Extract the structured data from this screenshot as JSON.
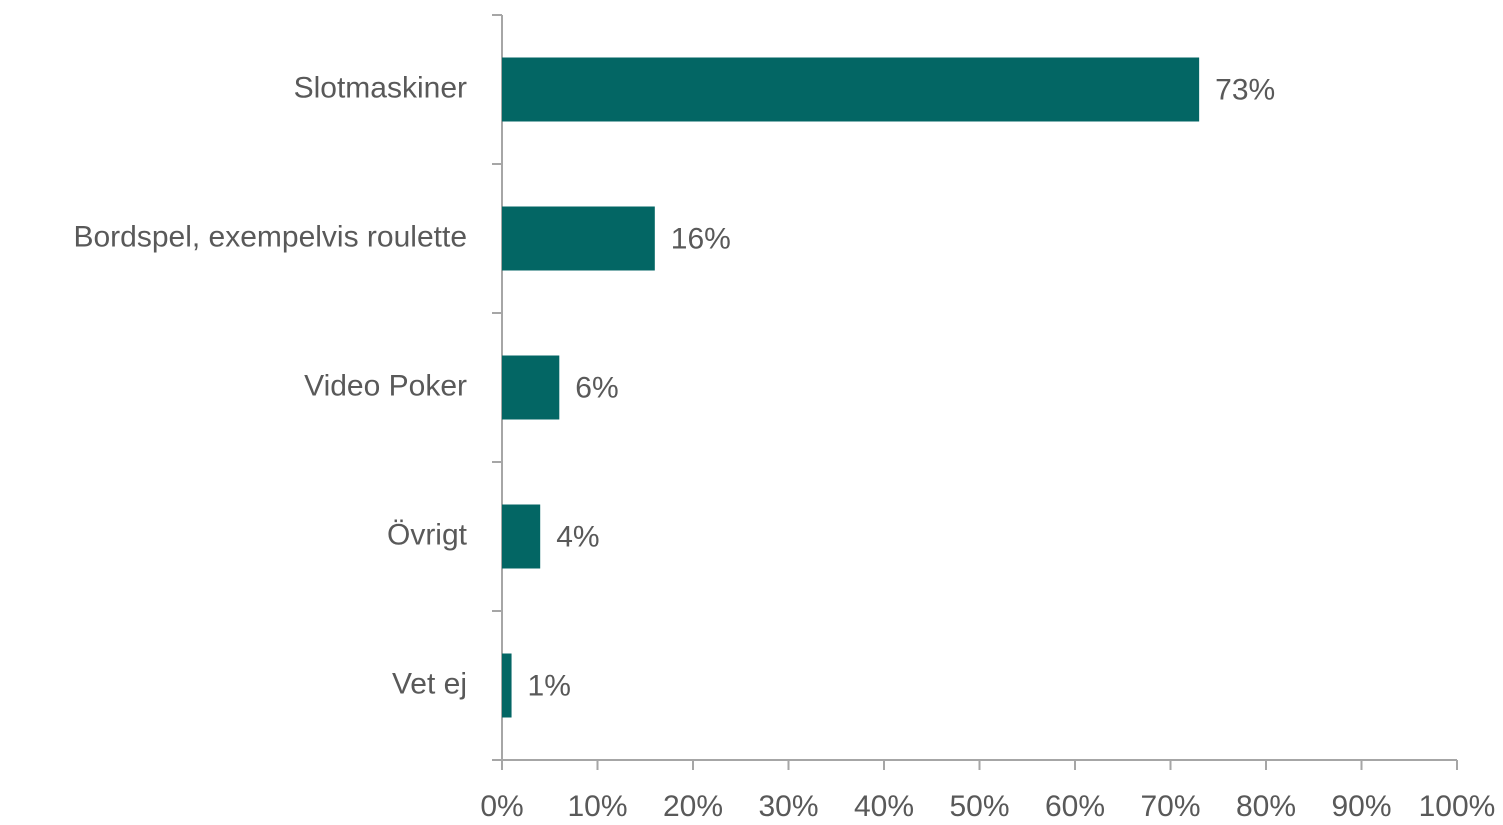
{
  "chart_data": {
    "type": "bar",
    "orientation": "horizontal",
    "categories": [
      "Slotmaskiner",
      "Bordspel, exempelvis roulette",
      "Video Poker",
      "Övrigt",
      "Vet ej"
    ],
    "values": [
      73,
      16,
      6,
      4,
      1
    ],
    "value_labels": [
      "73%",
      "16%",
      "6%",
      "4%",
      "1%"
    ],
    "color": "#036664",
    "xlim": [
      0,
      100
    ],
    "xticks": [
      {
        "value": 0,
        "label": "0%"
      },
      {
        "value": 10,
        "label": "10%"
      },
      {
        "value": 20,
        "label": "20%"
      },
      {
        "value": 30,
        "label": "30%"
      },
      {
        "value": 40,
        "label": "40%"
      },
      {
        "value": 50,
        "label": "50%"
      },
      {
        "value": 60,
        "label": "60%"
      },
      {
        "value": 70,
        "label": "70%"
      },
      {
        "value": 80,
        "label": "80%"
      },
      {
        "value": 90,
        "label": "90%"
      },
      {
        "value": 100,
        "label": "100%"
      }
    ],
    "grid": false
  }
}
